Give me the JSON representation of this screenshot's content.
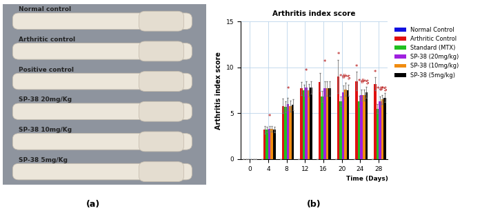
{
  "image_panel": {
    "caption": "(a)",
    "labels": [
      "Normal control",
      "Arthritic control",
      "Positive control",
      "SP-38 20mg/Kg",
      "SP-38 10mg/Kg",
      "SP-38 5mg/Kg"
    ]
  },
  "chart_data": {
    "type": "bar",
    "title": "Arthritis index score",
    "caption": "(b)",
    "x_label": "Time (Days)",
    "y_label": "Arthritis index score",
    "categories": [
      "0",
      "4",
      "8",
      "12",
      "16",
      "20",
      "24",
      "28"
    ],
    "series": [
      {
        "name": "Normal Control",
        "color": "#1010e0",
        "values": [
          0,
          0,
          0,
          0,
          0,
          0,
          0,
          0
        ],
        "errors": [
          0,
          0,
          0,
          0,
          0,
          0,
          0,
          0
        ]
      },
      {
        "name": "Arthritic Control",
        "color": "#e01010",
        "values": [
          0,
          3.2,
          5.8,
          7.7,
          8.4,
          9.0,
          8.5,
          8.2
        ],
        "errors": [
          0,
          0.4,
          0.8,
          0.7,
          1.0,
          1.8,
          1.0,
          0.7
        ]
      },
      {
        "name": "Standard (MTX)",
        "color": "#20c020",
        "values": [
          0,
          3.2,
          5.7,
          7.5,
          6.8,
          6.3,
          6.3,
          5.5
        ],
        "errors": [
          0,
          0.3,
          0.6,
          0.6,
          0.6,
          0.5,
          0.6,
          0.5
        ]
      },
      {
        "name": "SP-38 (20mg/kg)",
        "color": "#a020e0",
        "values": [
          0,
          3.3,
          6.0,
          7.8,
          7.7,
          7.3,
          7.0,
          6.3
        ],
        "errors": [
          0,
          0.3,
          0.7,
          0.7,
          0.8,
          0.7,
          0.6,
          0.5
        ]
      },
      {
        "name": "SP-38 (10mg/kg)",
        "color": "#f08c10",
        "values": [
          0,
          3.3,
          5.8,
          7.5,
          7.7,
          7.6,
          7.0,
          6.5
        ],
        "errors": [
          0,
          0.3,
          0.6,
          0.7,
          0.8,
          0.7,
          0.6,
          0.5
        ]
      },
      {
        "name": "SP-38 (5mg/kg)",
        "color": "#000000",
        "values": [
          0,
          3.2,
          5.9,
          7.8,
          7.7,
          7.5,
          7.3,
          6.7
        ],
        "errors": [
          0,
          0.3,
          0.6,
          0.7,
          0.8,
          0.6,
          0.6,
          0.5
        ]
      }
    ],
    "annotations": [
      {
        "category": "4",
        "series": "SP-38 (20mg/kg)",
        "y": 4.3,
        "text": "*"
      },
      {
        "category": "8",
        "series": "SP-38 (20mg/kg)",
        "y": 7.3,
        "text": "*"
      },
      {
        "category": "12",
        "series": "SP-38 (20mg/kg)",
        "y": 9.2,
        "text": "*"
      },
      {
        "category": "16",
        "series": "SP-38 (20mg/kg)",
        "y": 10.2,
        "text": "*"
      },
      {
        "category": "20",
        "series": "Arthritic Control",
        "y": 11.0,
        "text": "*"
      },
      {
        "category": "20",
        "series": "SP-38 (20mg/kg)",
        "y": 8.6,
        "text": "*#"
      },
      {
        "category": "20",
        "series": "SP-38 (5mg/kg)",
        "y": 8.6,
        "text": "*$"
      },
      {
        "category": "24",
        "series": "Arthritic Control",
        "y": 9.7,
        "text": "*"
      },
      {
        "category": "24",
        "series": "SP-38 (20mg/kg)",
        "y": 8.1,
        "text": "*#"
      },
      {
        "category": "24",
        "series": "SP-38 (5mg/kg)",
        "y": 8.1,
        "text": "*$"
      },
      {
        "category": "28",
        "series": "Arthritic Control",
        "y": 9.1,
        "text": "*"
      },
      {
        "category": "28",
        "series": "SP-38 (20mg/kg)",
        "y": 7.3,
        "text": "*#"
      },
      {
        "category": "28",
        "series": "SP-38 (5mg/kg)",
        "y": 7.3,
        "text": "*$"
      }
    ],
    "ylim": [
      0,
      15
    ],
    "yticks": [
      0,
      5,
      10,
      15
    ],
    "grid": true,
    "legend": "right"
  }
}
